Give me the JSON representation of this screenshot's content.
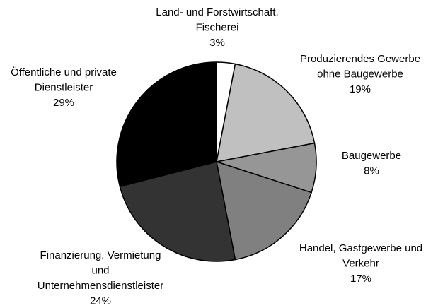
{
  "chart_data": {
    "type": "pie",
    "categories": [
      [
        "Land- und Forstwirtschaft,",
        "Fischerei"
      ],
      [
        "Produzierendes Gewerbe",
        "ohne Baugewerbe"
      ],
      [
        "Baugewerbe"
      ],
      [
        "Handel, Gastgewerbe und",
        "Verkehr"
      ],
      [
        "Finanzierung, Vermietung",
        "und",
        "Unternehmensdienstleister"
      ],
      [
        "Öffentliche und private",
        "Dienstleister"
      ]
    ],
    "values": [
      3,
      19,
      8,
      17,
      24,
      29
    ],
    "value_labels": [
      "3%",
      "19%",
      "8%",
      "17%",
      "24%",
      "29%"
    ],
    "colors": [
      "#ffffff",
      "#c0c0c0",
      "#969696",
      "#808080",
      "#333333",
      "#000000"
    ]
  }
}
